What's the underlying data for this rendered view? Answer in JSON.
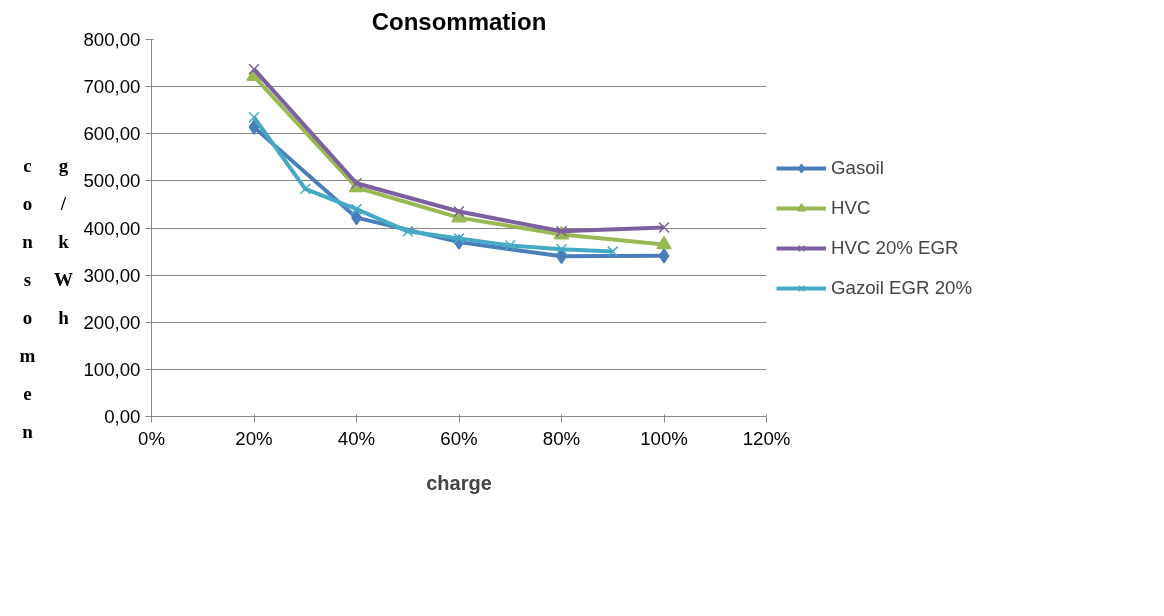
{
  "chart_data": {
    "type": "line",
    "title": "Consommation",
    "xlabel": "charge",
    "ylabel": "consomen g/kWh",
    "xlim": [
      0,
      1.2
    ],
    "xticks": [
      {
        "value": 0,
        "label": "0%"
      },
      {
        "value": 0.2,
        "label": "20%"
      },
      {
        "value": 0.4,
        "label": "40%"
      },
      {
        "value": 0.6,
        "label": "60%"
      },
      {
        "value": 0.8,
        "label": "80%"
      },
      {
        "value": 1.0,
        "label": "100%"
      },
      {
        "value": 1.2,
        "label": "120%"
      }
    ],
    "ylim": [
      0,
      800
    ],
    "yticks": [
      {
        "value": 0,
        "label": "0,00"
      },
      {
        "value": 100,
        "label": "100,00"
      },
      {
        "value": 200,
        "label": "200,00"
      },
      {
        "value": 300,
        "label": "300,00"
      },
      {
        "value": 400,
        "label": "400,00"
      },
      {
        "value": 500,
        "label": "500,00"
      },
      {
        "value": 600,
        "label": "600,00"
      },
      {
        "value": 700,
        "label": "700,00"
      },
      {
        "value": 800,
        "label": "800,00"
      }
    ],
    "grid": "y",
    "legend": "right",
    "line_style": "solid",
    "series": [
      {
        "name": "Gasoil",
        "color": "#4a7ebb",
        "marker": "diamond",
        "x": [
          0.2,
          0.4,
          0.6,
          0.8,
          1.0
        ],
        "values": [
          614,
          422,
          370,
          340,
          341
        ]
      },
      {
        "name": "HVC",
        "color": "#98b954",
        "marker": "triangle",
        "x": [
          0.2,
          0.4,
          0.6,
          0.8,
          1.0
        ],
        "values": [
          722,
          486,
          422,
          386,
          365
        ]
      },
      {
        "name": "HVC 20% EGR",
        "color": "#7d60a0",
        "marker": "cross",
        "x": [
          0.2,
          0.4,
          0.6,
          0.8,
          1.0
        ],
        "values": [
          737,
          495,
          435,
          393,
          401
        ]
      },
      {
        "name": "Gazoil EGR 20%",
        "color": "#46aac5",
        "marker": "cross",
        "x": [
          0.2,
          0.3,
          0.4,
          0.5,
          0.6,
          0.7,
          0.8,
          0.9
        ],
        "values": [
          635,
          483,
          440,
          393,
          378,
          363,
          355,
          350
        ]
      }
    ]
  }
}
